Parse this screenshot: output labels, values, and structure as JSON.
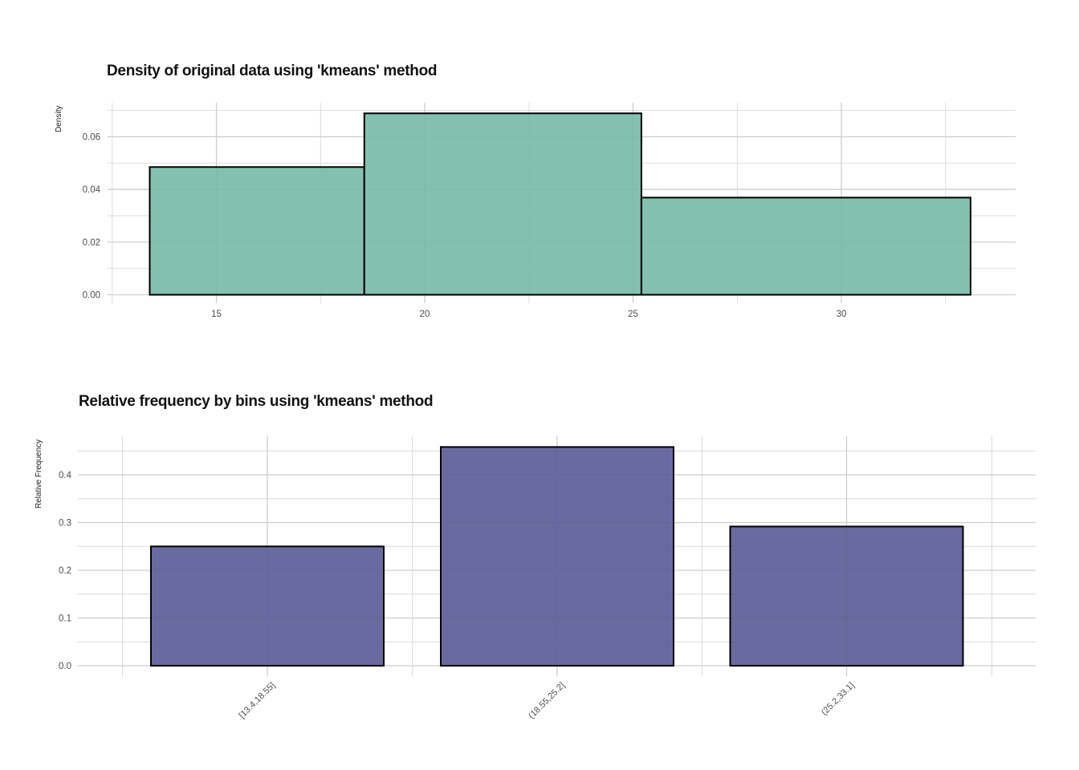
{
  "page": {
    "background": "#FFFFFF"
  },
  "chart_data": [
    {
      "type": "bar",
      "subtype": "density_histogram",
      "title": "Density of original data using 'kmeans' method",
      "xlabel": "",
      "ylabel": "Density",
      "bin_edges": [
        13.4,
        18.55,
        25.2,
        33.1
      ],
      "densities": [
        0.0485,
        0.0689,
        0.0369
      ],
      "x_tick_values": [
        15,
        20,
        25,
        30
      ],
      "x_tick_labels": [
        "15",
        "20",
        "25",
        "30"
      ],
      "x_minor_gridlines": [
        12.5,
        17.5,
        22.5,
        27.5,
        32.5
      ],
      "y_tick_values": [
        0.0,
        0.02,
        0.04,
        0.06
      ],
      "y_tick_labels": [
        "0.00",
        "0.02",
        "0.04",
        "0.06"
      ],
      "y_minor_gridlines": [
        0.01,
        0.03,
        0.05,
        0.07
      ],
      "xlim": [
        12.42,
        34.08
      ],
      "ylim": [
        -0.0035,
        0.0729
      ],
      "grid": "major+minor",
      "legend": "none",
      "bar_fill": "#77B9A7",
      "bar_fill_opacity": 0.9,
      "bar_stroke": "#000000"
    },
    {
      "type": "bar",
      "subtype": "relative_frequency",
      "title": "Relative frequency by bins using 'kmeans' method",
      "xlabel": "",
      "ylabel": "Relative Frequency",
      "categories": [
        "[13.4,18.55]",
        "(18.55,25.2]",
        "(25.2,33.1]"
      ],
      "values": [
        0.25,
        0.4583,
        0.2917
      ],
      "y_tick_values": [
        0.0,
        0.1,
        0.2,
        0.3,
        0.4
      ],
      "y_tick_labels": [
        "0.0",
        "0.1",
        "0.2",
        "0.3",
        "0.4"
      ],
      "y_minor_gridlines": [
        0.05,
        0.15,
        0.25,
        0.35,
        0.45
      ],
      "ylim": [
        -0.023,
        0.481
      ],
      "grid": "major+minor",
      "legend": "none",
      "bar_fill": "#595A95",
      "bar_fill_opacity": 0.9,
      "bar_stroke": "#000000"
    }
  ],
  "theme": {
    "grid_major_color": "#CDCDCD",
    "grid_minor_color": "#D8D8D8",
    "tick_label_color": "#4D4D4D",
    "title_color": "#111111",
    "axis_title_color": "#222222"
  }
}
